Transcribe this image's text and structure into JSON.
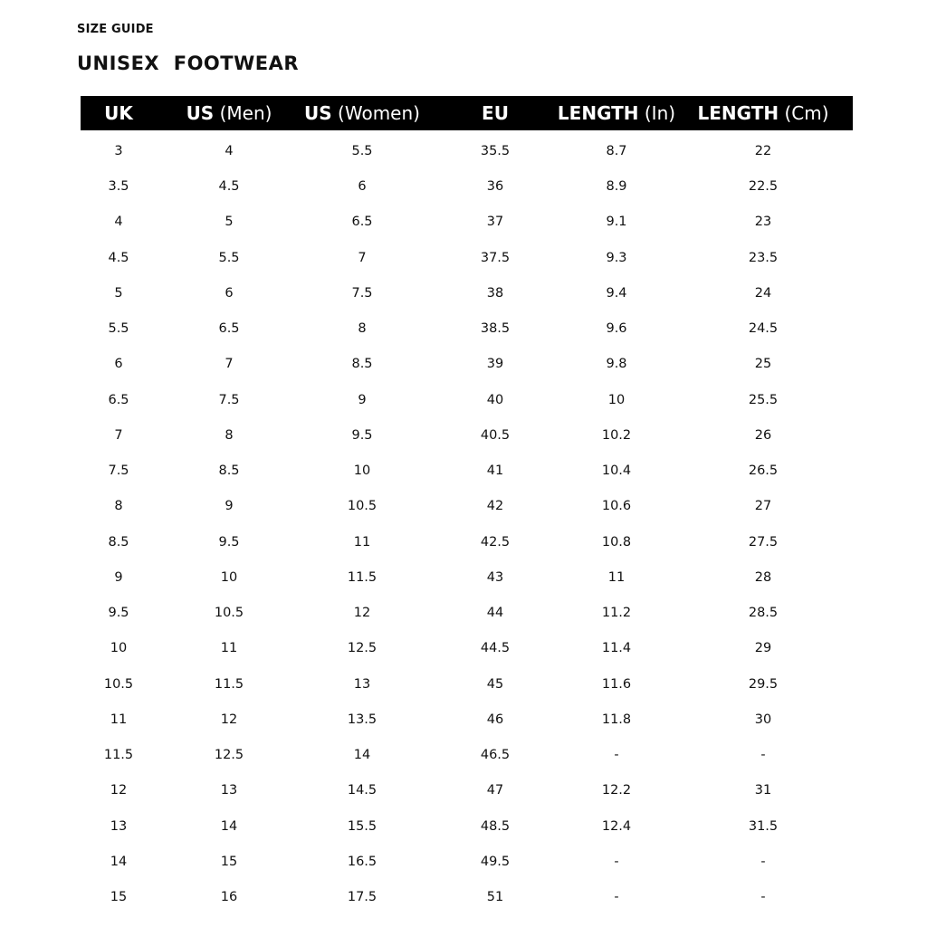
{
  "kicker": "SIZE GUIDE",
  "title": "UNISEX  FOOTWEAR",
  "header_bg": "#000000",
  "columns": [
    {
      "bold": "UK",
      "light": ""
    },
    {
      "bold": "US",
      "light": " (Men)"
    },
    {
      "bold": "US",
      "light": " (Women)"
    },
    {
      "bold": "EU",
      "light": ""
    },
    {
      "bold": "LENGTH",
      "light": " (In)"
    },
    {
      "bold": "LENGTH",
      "light": " (Cm)"
    }
  ],
  "rows": [
    [
      "3",
      "4",
      "5.5",
      "35.5",
      "8.7",
      "22"
    ],
    [
      "3.5",
      "4.5",
      "6",
      "36",
      "8.9",
      "22.5"
    ],
    [
      "4",
      "5",
      "6.5",
      "37",
      "9.1",
      "23"
    ],
    [
      "4.5",
      "5.5",
      "7",
      "37.5",
      "9.3",
      "23.5"
    ],
    [
      "5",
      "6",
      "7.5",
      "38",
      "9.4",
      "24"
    ],
    [
      "5.5",
      "6.5",
      "8",
      "38.5",
      "9.6",
      "24.5"
    ],
    [
      "6",
      "7",
      "8.5",
      "39",
      "9.8",
      "25"
    ],
    [
      "6.5",
      "7.5",
      "9",
      "40",
      "10",
      "25.5"
    ],
    [
      "7",
      "8",
      "9.5",
      "40.5",
      "10.2",
      "26"
    ],
    [
      "7.5",
      "8.5",
      "10",
      "41",
      "10.4",
      "26.5"
    ],
    [
      "8",
      "9",
      "10.5",
      "42",
      "10.6",
      "27"
    ],
    [
      "8.5",
      "9.5",
      "11",
      "42.5",
      "10.8",
      "27.5"
    ],
    [
      "9",
      "10",
      "11.5",
      "43",
      "11",
      "28"
    ],
    [
      "9.5",
      "10.5",
      "12",
      "44",
      "11.2",
      "28.5"
    ],
    [
      "10",
      "11",
      "12.5",
      "44.5",
      "11.4",
      "29"
    ],
    [
      "10.5",
      "11.5",
      "13",
      "45",
      "11.6",
      "29.5"
    ],
    [
      "11",
      "12",
      "13.5",
      "46",
      "11.8",
      "30"
    ],
    [
      "11.5",
      "12.5",
      "14",
      "46.5",
      "-",
      "-"
    ],
    [
      "12",
      "13",
      "14.5",
      "47",
      "12.2",
      "31"
    ],
    [
      "13",
      "14",
      "15.5",
      "48.5",
      "12.4",
      "31.5"
    ],
    [
      "14",
      "15",
      "16.5",
      "49.5",
      "-",
      "-"
    ],
    [
      "15",
      "16",
      "17.5",
      "51",
      "-",
      "-"
    ]
  ]
}
